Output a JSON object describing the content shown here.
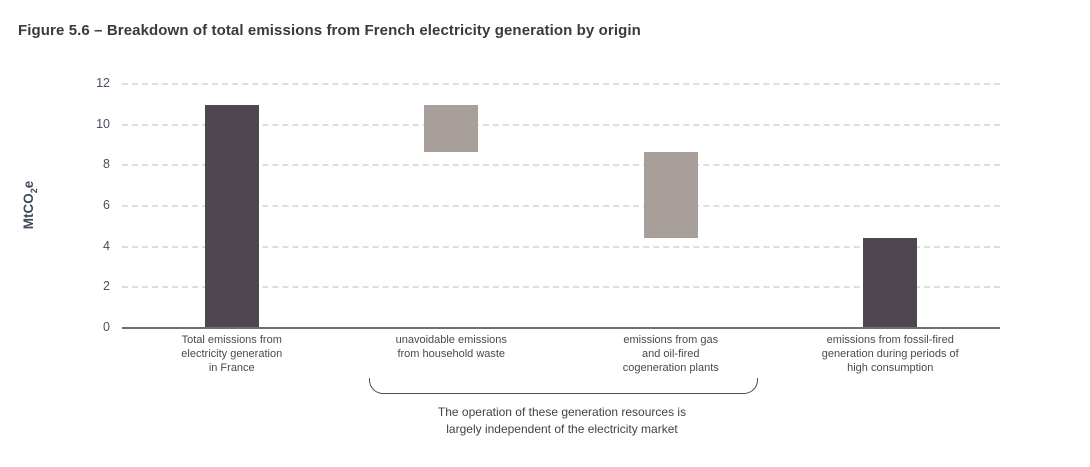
{
  "title": "Figure 5.6 – Breakdown of total emissions from French electricity generation by origin",
  "chart_data": {
    "type": "bar",
    "subtype": "floating-waterfall",
    "title": "Figure 5.6 – Breakdown of total emissions from French electricity generation by origin",
    "ylabel": "MtCO2e",
    "ylabel_parts": {
      "main": "MtCO",
      "sub": "2",
      "end": "e"
    },
    "ylim": [
      0,
      12
    ],
    "yticks": [
      0,
      2,
      4,
      6,
      8,
      10,
      12
    ],
    "grid": "horizontal-dashed",
    "legend": "none",
    "colors": {
      "dark": "#4e4750",
      "light": "#a89f9b",
      "axis": "#6f6f6f",
      "gridline": "#dedede"
    },
    "bars": [
      {
        "label": "Total emissions from\nelectricity generation\nin France",
        "from": 0,
        "to": 10.9,
        "value": 10.9,
        "color_key": "dark"
      },
      {
        "label": "unavoidable emissions\nfrom household waste",
        "from": 8.6,
        "to": 10.9,
        "value": 2.3,
        "color_key": "light"
      },
      {
        "label": "emissions from gas\nand oil-fired\ncogeneration plants",
        "from": 4.4,
        "to": 8.6,
        "value": 4.2,
        "color_key": "light"
      },
      {
        "label": "emissions from fossil-fired\ngeneration during periods of\nhigh consumption",
        "from": 0,
        "to": 4.4,
        "value": 4.4,
        "color_key": "dark"
      }
    ],
    "annotation": {
      "brace_over_bar_indices": [
        1,
        2
      ],
      "text": "The operation of these generation resources is\nlargely independent of the electricity market"
    }
  }
}
